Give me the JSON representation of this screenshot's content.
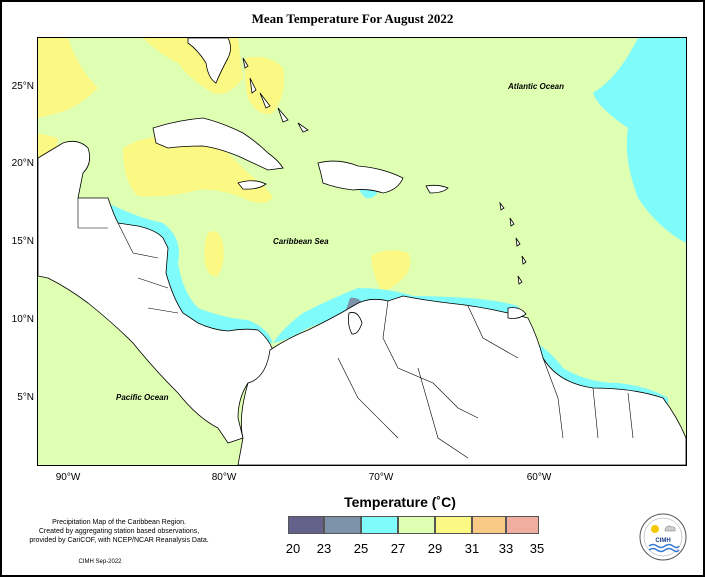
{
  "title": "Mean Temperature For August 2022",
  "map": {
    "oceans": [
      "Atlantic Ocean",
      "Caribbean Sea",
      "Pacific Ocean"
    ],
    "lat_labels": [
      "25°N",
      "20°N",
      "15°N",
      "10°N",
      "5°N"
    ],
    "lon_labels": [
      "90°W",
      "80°W",
      "70°W",
      "60°W"
    ],
    "colors": {
      "20-23": "#64628a",
      "23-25": "#7d93aa",
      "25-27": "#80fbfb",
      "27-29": "#dfffb3",
      "29-31": "#fbf884",
      "31-33": "#f9ca86",
      "33-35": "#f0aea0"
    }
  },
  "legend": {
    "title": "Temperature (˚C)",
    "ticks": [
      "20",
      "23",
      "25",
      "27",
      "29",
      "31",
      "33",
      "35"
    ],
    "colors": [
      "#64628a",
      "#7d93aa",
      "#80fbfb",
      "#dfffb3",
      "#fbf884",
      "#f9ca86",
      "#f0aea0"
    ]
  },
  "footnote": {
    "line1": "Precipitation Map of the Caribbean Region.",
    "line2": "Created by aggregating station based observations,",
    "line3": "provided by CariCOF, with NCEP/NCAR Reanalysis Data.",
    "credit": "CIMH Sep-2022"
  },
  "logo": {
    "text": "CIMH",
    "icon": "cimh-logo-icon"
  }
}
